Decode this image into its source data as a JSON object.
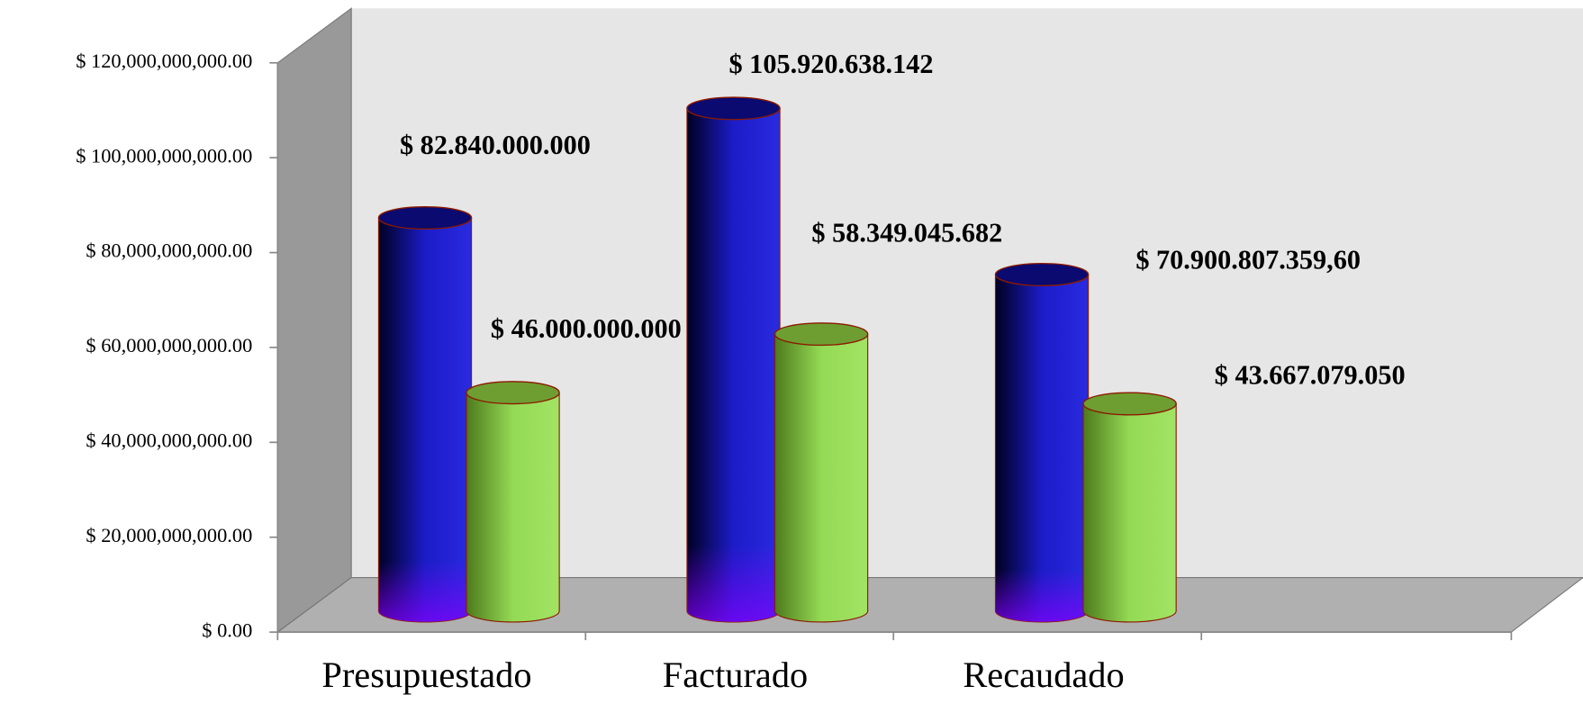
{
  "chart_data": {
    "type": "bar3d",
    "categories": [
      "Presupuestado",
      "Facturado",
      "Recaudado",
      null
    ],
    "series": [
      {
        "color": "#1a1acc",
        "values": [
          82840000000,
          105920638142,
          70900807359.6,
          null
        ],
        "value_labels": [
          "$ 82.840.000.000",
          "$ 105.920.638.142",
          "$ 70.900.807.359,60",
          null
        ]
      },
      {
        "color": "#99dd55",
        "values": [
          46000000000,
          58349045682,
          43667079050,
          null
        ],
        "value_labels": [
          "$ 46.000.000.000",
          "$ 58.349.045.682",
          "$ 43.667.079.050",
          null
        ]
      }
    ],
    "ylim": [
      0,
      120000000000
    ],
    "yticks": [
      {
        "value": 0,
        "label": "$ 0.00"
      },
      {
        "value": 20000000000,
        "label": "$ 20,000,000,000.00"
      },
      {
        "value": 40000000000,
        "label": "$ 40,000,000,000.00"
      },
      {
        "value": 60000000000,
        "label": "$ 60,000,000,000.00"
      },
      {
        "value": 80000000000,
        "label": "$ 80,000,000,000.00"
      },
      {
        "value": 100000000000,
        "label": "$ 100,000,000,000.00"
      },
      {
        "value": 120000000000,
        "label": "$ 120,000,000,000.00"
      }
    ]
  }
}
